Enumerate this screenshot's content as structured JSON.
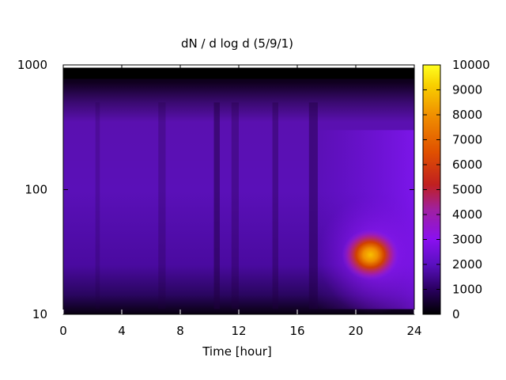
{
  "chart_data": {
    "type": "heatmap",
    "title": "dN / d log d (5/9/1)",
    "xlabel": "Time [hour]",
    "ylabel": "",
    "x_range": [
      0,
      24
    ],
    "x_ticks": [
      "0",
      "4",
      "8",
      "12",
      "16",
      "20",
      "24"
    ],
    "y_range": [
      10,
      1000
    ],
    "y_scale": "log",
    "y_ticks": [
      "10",
      "100",
      "1000"
    ],
    "colorbar": {
      "range": [
        0,
        10000
      ],
      "ticks": [
        "0",
        "1000",
        "2000",
        "3000",
        "4000",
        "5000",
        "6000",
        "7000",
        "8000",
        "9000",
        "10000"
      ],
      "colormap": [
        "#000000",
        "#3a0090",
        "#8a10e8",
        "#b02070",
        "#d84000",
        "#f08000",
        "#f8c000",
        "#ffff40"
      ]
    },
    "features": [
      {
        "description_of": "night-time nucleation burst",
        "x": [
          19,
          23
        ],
        "y_center": 30,
        "peak_value": 8000
      },
      {
        "description_of": "background accumulation mode",
        "x": [
          0,
          24
        ],
        "y": [
          12,
          400
        ],
        "value": 1500
      }
    ]
  }
}
